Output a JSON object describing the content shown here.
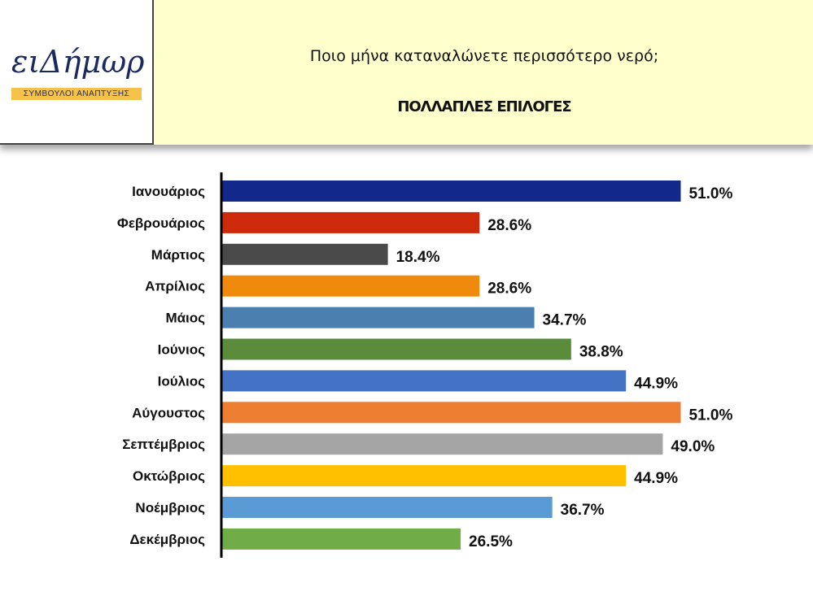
{
  "logo": {
    "wordmark": "ειΔήμωρ",
    "tagline": "ΣΥΜΒΟΥΛΟΙ ΑΝΑΠΤΥΞΗΣ",
    "colors": {
      "text": "#1a2a5e",
      "accent": "#f0b400",
      "strip": "#f4c24a"
    }
  },
  "header": {
    "question": "Ποιο μήνα καταναλώνετε περισσότερο νερό;",
    "subtitle": "ΠΟΛΛΑΠΛΕΣ ΕΠΙΛΟΓΕΣ",
    "background": "#ffffcc"
  },
  "chart_data": {
    "type": "bar",
    "orientation": "horizontal",
    "categories": [
      "Ιανουάριος",
      "Φεβρουάριος",
      "Μάρτιος",
      "Απρίλιος",
      "Μάιος",
      "Ιούνιος",
      "Ιούλιος",
      "Αύγουστος",
      "Σεπτέμβριος",
      "Οκτώβριος",
      "Νοέμβριος",
      "Δεκέμβριος"
    ],
    "values": [
      51.0,
      28.6,
      18.4,
      28.6,
      34.7,
      38.8,
      44.9,
      51.0,
      49.0,
      44.9,
      36.7,
      26.5
    ],
    "value_labels": [
      "51.0%",
      "28.6%",
      "18.4%",
      "28.6%",
      "34.7%",
      "38.8%",
      "44.9%",
      "51.0%",
      "49.0%",
      "44.9%",
      "36.7%",
      "26.5%"
    ],
    "colors": [
      "#12288a",
      "#cc2a0a",
      "#4a4a4a",
      "#f08a0c",
      "#4a7fb0",
      "#5a8c3c",
      "#4472c4",
      "#ed7d31",
      "#a5a5a5",
      "#ffc000",
      "#5b9bd5",
      "#70ad47"
    ],
    "xlim": [
      0,
      51.0
    ],
    "grid": false,
    "legend": "none"
  }
}
